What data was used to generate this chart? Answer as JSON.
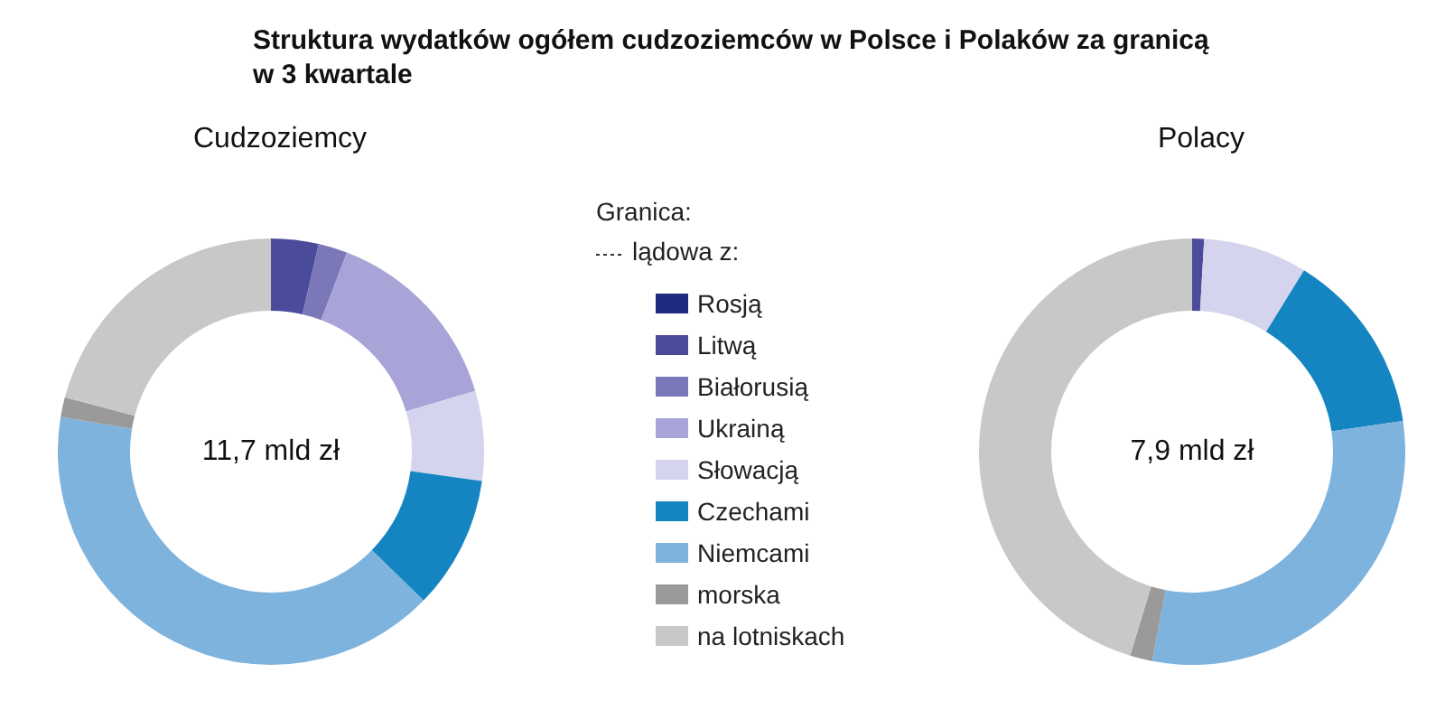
{
  "chart_data": {
    "type": "donut",
    "title": "Struktura wydatków ogółem cudzoziemców w Polsce i Polaków za granicą\nw 3 kwartale",
    "legend_title": "Granica:",
    "legend": "right",
    "annotations": [
      "11,7 mld zł",
      "7,9 mld zł",
      "lądowa z:"
    ],
    "categories": [
      "Rosją",
      "Litwą",
      "Białorusią",
      "Ukrainą",
      "Słowacją",
      "Czechami",
      "Niemcami",
      "morska",
      "na lotniskach"
    ],
    "colors": [
      "#1f2a80",
      "#4b4b9c",
      "#7a78b8",
      "#a8a4d8",
      "#d4d4ee",
      "#1585c2",
      "#7eb3de",
      "#9a9a9a",
      "#c8c8c8"
    ],
    "series": [
      {
        "name": "Cudzoziemcy",
        "values": [
          0,
          3.6,
          2.2,
          14.6,
          6.8,
          10.1,
          40.3,
          1.5,
          20.9
        ]
      },
      {
        "name": "Polacy",
        "values": [
          0,
          0.9,
          0,
          0,
          7.9,
          13.9,
          30.3,
          1.7,
          45.3
        ]
      }
    ]
  }
}
